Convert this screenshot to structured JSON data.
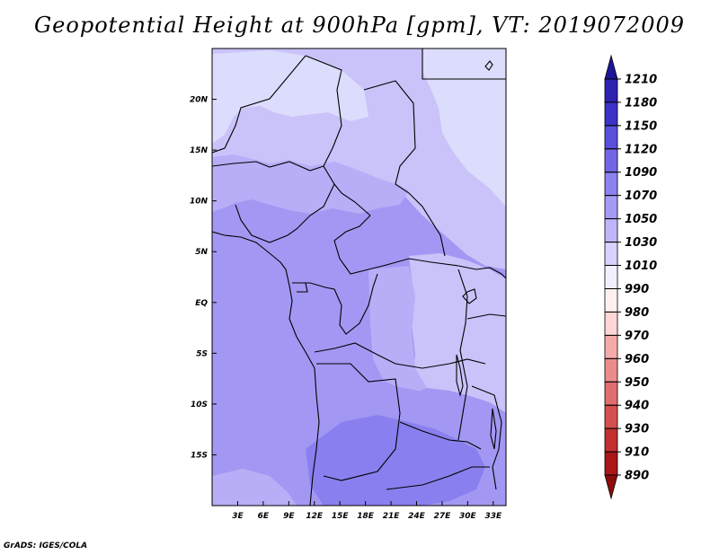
{
  "title": "Geopotential Height at 900hPa [gpm], VT: 2019072009",
  "credit": "GrADS: IGES/COLA",
  "map": {
    "lon_range": [
      0,
      34.5
    ],
    "lat_range": [
      -20,
      25
    ],
    "lon_ticks": [
      {
        "lon": 3,
        "label": "3E"
      },
      {
        "lon": 6,
        "label": "6E"
      },
      {
        "lon": 9,
        "label": "9E"
      },
      {
        "lon": 12,
        "label": "12E"
      },
      {
        "lon": 15,
        "label": "15E"
      },
      {
        "lon": 18,
        "label": "18E"
      },
      {
        "lon": 21,
        "label": "21E"
      },
      {
        "lon": 24,
        "label": "24E"
      },
      {
        "lon": 27,
        "label": "27E"
      },
      {
        "lon": 30,
        "label": "30E"
      },
      {
        "lon": 33,
        "label": "33E"
      }
    ],
    "lat_ticks": [
      {
        "lat": 20,
        "label": "20N"
      },
      {
        "lat": 15,
        "label": "15N"
      },
      {
        "lat": 10,
        "label": "10N"
      },
      {
        "lat": 5,
        "label": "5N"
      },
      {
        "lat": 0,
        "label": "EQ"
      },
      {
        "lat": -5,
        "label": "5S"
      },
      {
        "lat": -10,
        "label": "10S"
      },
      {
        "lat": -15,
        "label": "15S"
      }
    ]
  },
  "colorbar": {
    "levels": [
      "1210",
      "1180",
      "1150",
      "1120",
      "1090",
      "1070",
      "1050",
      "1030",
      "1010",
      "990",
      "980",
      "970",
      "960",
      "950",
      "940",
      "930",
      "910",
      "890"
    ],
    "colors": [
      "#1e1696",
      "#2d22b0",
      "#3c32c8",
      "#5a50dc",
      "#7366e6",
      "#8c82f0",
      "#a59bf5",
      "#bfb6fa",
      "#d8d2fc",
      "#f2f0ff",
      "#fff0f0",
      "#ffd6d6",
      "#f5aaaa",
      "#eb8c8c",
      "#e06e6e",
      "#d44f4f",
      "#c33030",
      "#a81818",
      "#8c0c0c"
    ]
  },
  "field_colors": {
    "c1010": "#dcdcfc",
    "c1030": "#c9c3fa",
    "c1050": "#b7aef7",
    "c1070": "#a298f3",
    "c1090": "#8a7fee"
  }
}
